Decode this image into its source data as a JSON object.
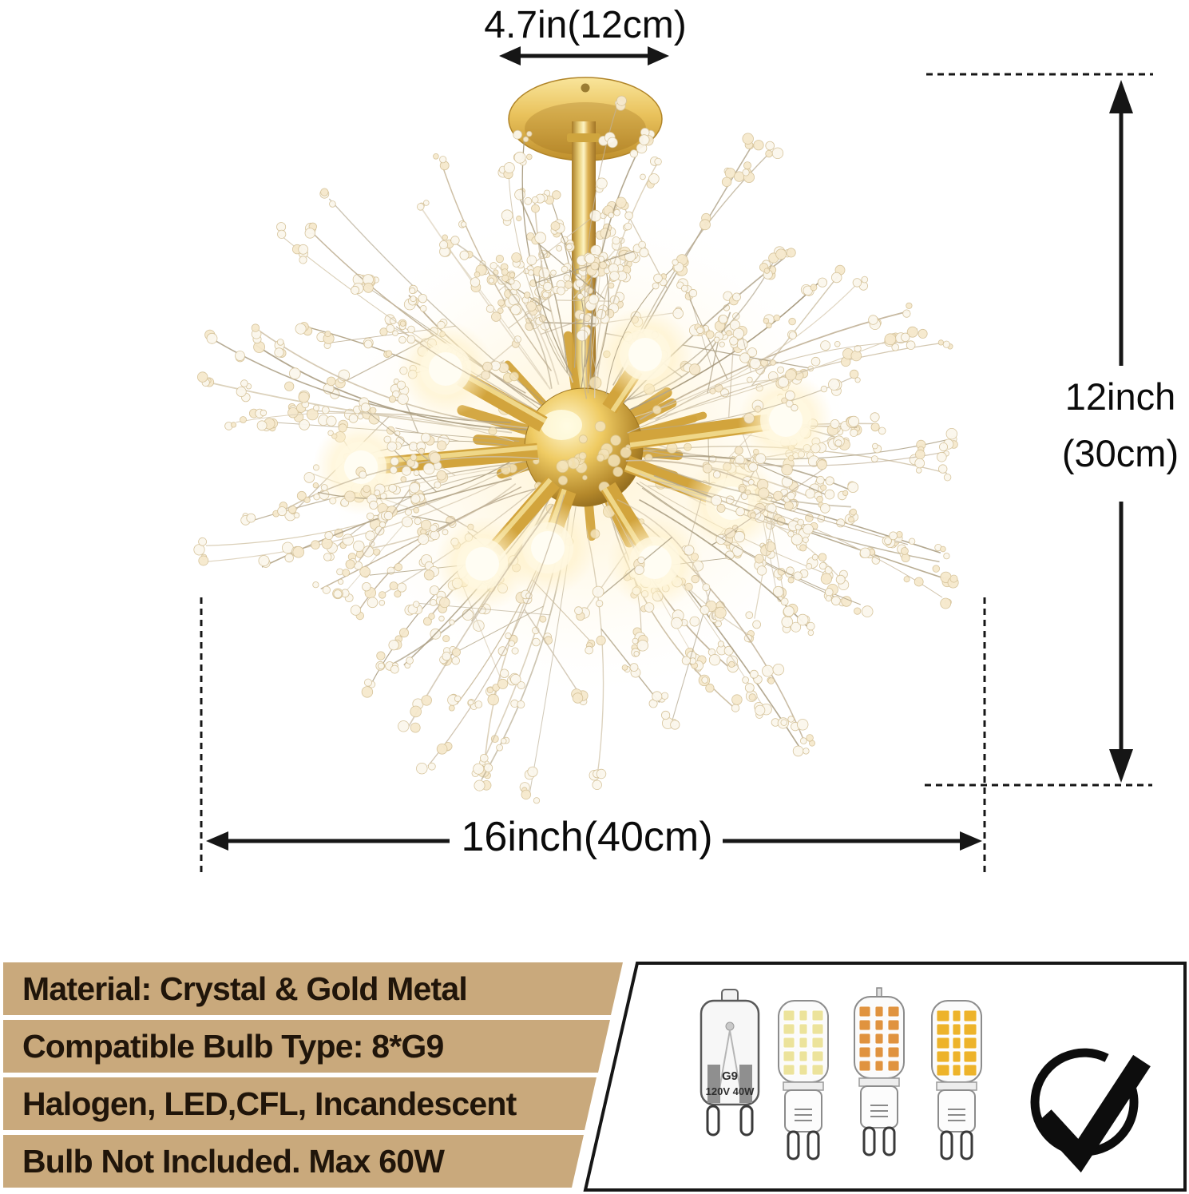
{
  "dimensions": {
    "canopy_width": "4.7in(12cm)",
    "height_in": "12inch",
    "height_cm": "(30cm)",
    "diameter": "16inch(40cm)"
  },
  "specs": {
    "rows": [
      {
        "text": "Material: Crystal & Gold Metal"
      },
      {
        "text": "Compatible Bulb Type: 8*G9"
      },
      {
        "text": "Halogen, LED,CFL, Incandescent"
      },
      {
        "text": "Bulb Not Included. Max 60W"
      }
    ]
  },
  "bulb_panel": {
    "bulbs": [
      {
        "name": "halogen-g9-bulb",
        "label_line1": "G9",
        "label_line2": "120V 40W",
        "chip_color": ""
      },
      {
        "name": "led-g9-bulb-pale",
        "chip_color": "#ece39b"
      },
      {
        "name": "led-g9-bulb-orange",
        "chip_color": "#e0933f"
      },
      {
        "name": "led-g9-bulb-amber",
        "chip_color": "#edb32a"
      }
    ],
    "check_icon": "checkmark-circle"
  },
  "colors": {
    "accent_tan": "#c9a97c",
    "gold": "#d2a43c",
    "ink": "#161616",
    "spec_text": "#20150a",
    "glow_warm": "#ffeec4"
  }
}
